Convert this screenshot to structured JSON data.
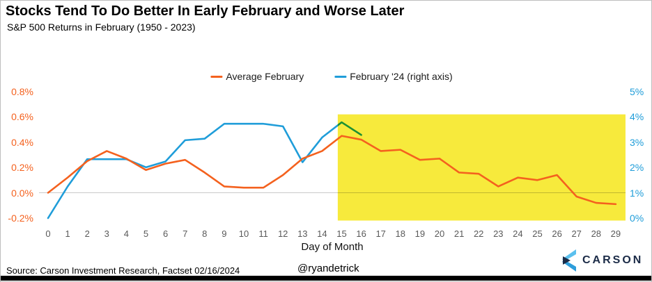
{
  "header": {
    "title": "Stocks Tend To Do Better In Early February and Worse Later",
    "subtitle": "S&P 500 Returns in February (1950 - 2023)"
  },
  "chart_data": {
    "type": "line",
    "title": "Stocks Tend To Do Better In Early February and Worse Later",
    "subtitle": "S&P 500 Returns in February (1950 - 2023)",
    "xlabel": "Day of Month",
    "legend_position": "top-center",
    "grid": "single-horizontal-line-at-left-zero",
    "x": [
      0,
      1,
      2,
      3,
      4,
      5,
      6,
      7,
      8,
      9,
      10,
      11,
      12,
      13,
      14,
      15,
      16,
      17,
      18,
      19,
      20,
      21,
      22,
      23,
      24,
      25,
      26,
      27,
      28,
      29
    ],
    "series": [
      {
        "name": "Average February",
        "axis": "left",
        "unit": "%",
        "color": "#F4611E",
        "values": [
          0.0,
          0.12,
          0.25,
          0.33,
          0.27,
          0.18,
          0.23,
          0.26,
          0.16,
          0.05,
          0.04,
          0.04,
          0.14,
          0.27,
          0.33,
          0.45,
          0.42,
          0.33,
          0.34,
          0.26,
          0.27,
          0.16,
          0.15,
          0.05,
          0.12,
          0.1,
          0.14,
          -0.03,
          -0.08,
          -0.09
        ]
      },
      {
        "name": "February '24 (right axis)",
        "axis": "right",
        "unit": "%",
        "color": "#1F9DD9",
        "values": [
          0.0,
          1.25,
          2.33,
          2.33,
          2.33,
          2.01,
          2.24,
          3.08,
          3.14,
          3.73,
          3.73,
          3.73,
          3.63,
          2.21,
          3.19,
          3.79,
          3.29
        ]
      }
    ],
    "left_axis": {
      "ticks": [
        "0.8%",
        "0.6%",
        "0.4%",
        "0.2%",
        "0.0%",
        "-0.2%"
      ],
      "min": -0.2,
      "max": 0.8,
      "color": "#F4611E"
    },
    "right_axis": {
      "ticks": [
        "5%",
        "4%",
        "3%",
        "2%",
        "1%",
        "0%"
      ],
      "min": 0,
      "max": 5,
      "color": "#1F9DD9"
    },
    "gridline": {
      "axis": "left",
      "value": 0.0,
      "color": "#C8C8C8"
    },
    "highlight_band": {
      "start_day": 14.8,
      "end_day": 29.5,
      "top": 0.62,
      "bottom": -0.22,
      "color": "#F7EA3C"
    }
  },
  "footer": {
    "source": "Source: Carson Investment Research, Factset 02/16/2024",
    "handle": "@ryandetrick",
    "brand": "CARSON"
  },
  "colors": {
    "orange": "#F4611E",
    "blue": "#1F9DD9",
    "yellow": "#F7EA3C",
    "navy": "#1B2B47",
    "logo_light_blue": "#5BC0EE",
    "logo_mid_blue": "#2D9DDB",
    "axis_gray": "#595959"
  }
}
